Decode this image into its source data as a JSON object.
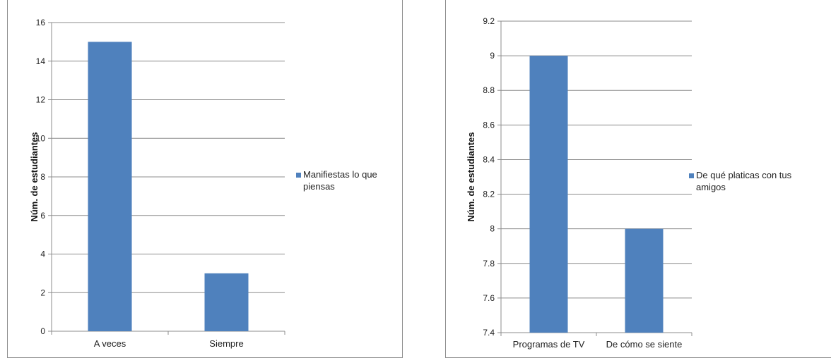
{
  "colors": {
    "bar": "#4f81bd",
    "grid": "#8c8c8c",
    "axis": "#8c8c8c"
  },
  "chart_data": [
    {
      "type": "bar",
      "categories": [
        "A veces",
        "Siempre"
      ],
      "series": [
        {
          "name": "Manifiestas lo que piensas",
          "values": [
            15,
            3
          ]
        }
      ],
      "ylabel": "Núm. de estudiantes",
      "ylim": [
        0,
        16
      ],
      "yticks": [
        "0",
        "2",
        "4",
        "6",
        "8",
        "10",
        "12",
        "14",
        "16"
      ],
      "grid": true,
      "legend": "right",
      "legend_lines": [
        "Manifiestas lo que",
        "piensas"
      ]
    },
    {
      "type": "bar",
      "categories": [
        "Programas de TV",
        "De cómo se siente"
      ],
      "series": [
        {
          "name": "De qué platicas con tus amigos",
          "values": [
            9,
            8
          ]
        }
      ],
      "ylabel": "Núm. de estudiantes",
      "ylim": [
        7.4,
        9.2
      ],
      "yticks": [
        "7.4",
        "7.6",
        "7.8",
        "8",
        "8.2",
        "8.4",
        "8.6",
        "8.8",
        "9",
        "9.2"
      ],
      "grid": true,
      "legend": "right",
      "legend_lines": [
        "De qué platicas con tus",
        "amigos"
      ]
    }
  ]
}
